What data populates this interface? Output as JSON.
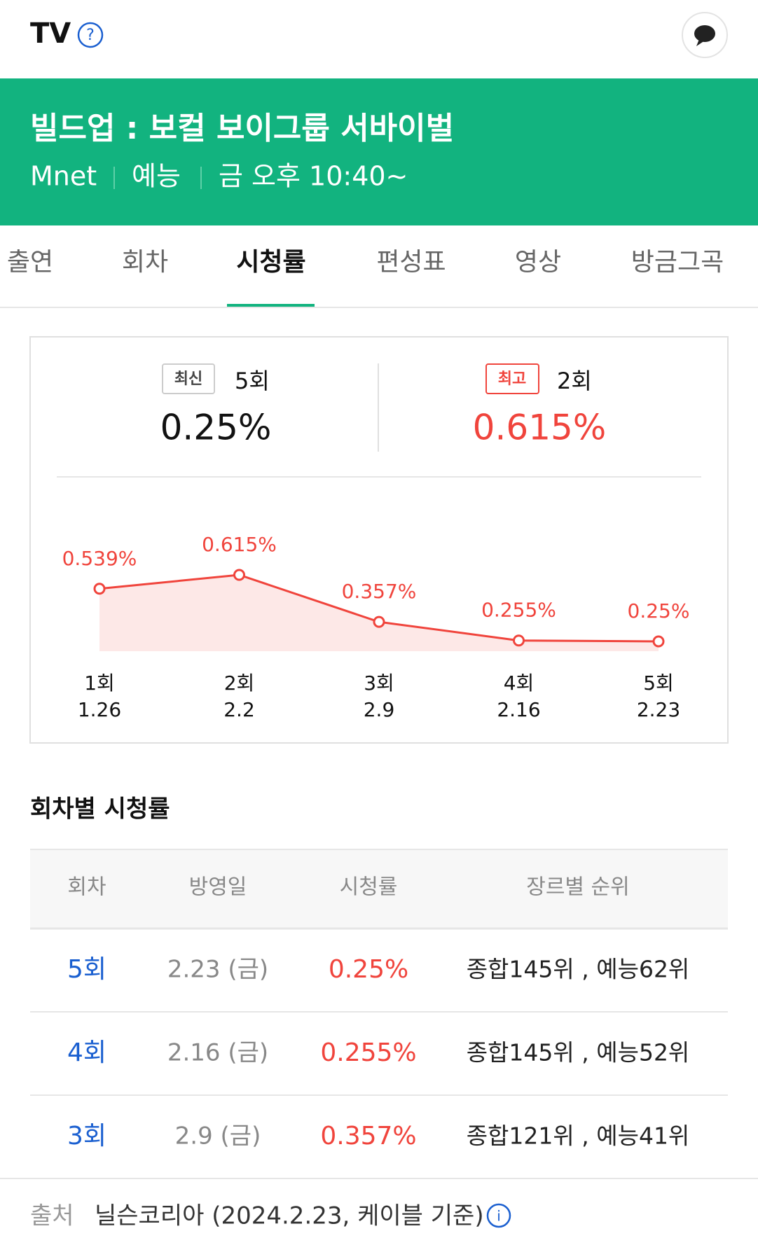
{
  "header": {
    "title": "TV"
  },
  "program": {
    "title": "빌드업 : 보컬 보이그룹 서바이벌",
    "channel": "Mnet",
    "genre": "예능",
    "schedule": "금 오후 10:40~"
  },
  "tabs": [
    "출연",
    "회차",
    "시청률",
    "편성표",
    "영상",
    "방금그곡"
  ],
  "summary": {
    "latest": {
      "badge": "최신",
      "episode": "5회",
      "rating": "0.25%"
    },
    "best": {
      "badge": "최고",
      "episode": "2회",
      "rating": "0.615%"
    }
  },
  "chart_data": {
    "type": "line",
    "categories": [
      "1회",
      "2회",
      "3회",
      "4회",
      "5회"
    ],
    "dates": [
      "1.26",
      "2.2",
      "2.9",
      "2.16",
      "2.23"
    ],
    "series": [
      {
        "color": "#f0443c",
        "values": [
          0.539,
          0.615,
          0.357,
          0.255,
          0.25
        ],
        "value_labels": [
          "0.539%",
          "0.615%",
          "0.357%",
          "0.255%",
          "0.25%"
        ]
      }
    ]
  },
  "table": {
    "title": "회차별 시청률",
    "columns": [
      "회차",
      "방영일",
      "시청률",
      "장르별 순위"
    ],
    "rows": [
      [
        "5회",
        "2.23 (금)",
        "0.25%",
        "종합145위 , 예능62위"
      ],
      [
        "4회",
        "2.16 (금)",
        "0.255%",
        "종합145위 , 예능52위"
      ],
      [
        "3회",
        "2.9 (금)",
        "0.357%",
        "종합121위 , 예능41위"
      ]
    ]
  },
  "source": {
    "label": "출처",
    "text": "닐슨코리아 (2024.2.23, 케이블 기준)"
  }
}
